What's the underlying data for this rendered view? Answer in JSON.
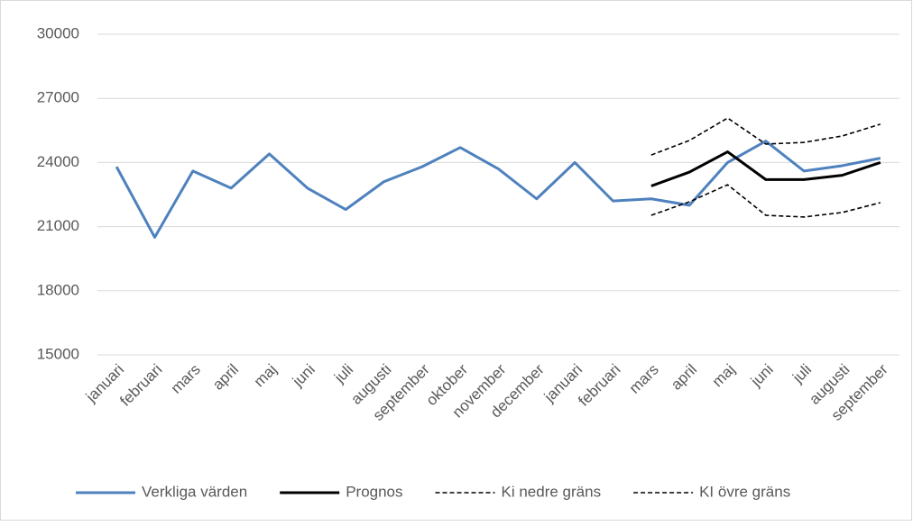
{
  "chart_data": {
    "type": "line",
    "categories": [
      "januari",
      "februari",
      "mars",
      "april",
      "maj",
      "juni",
      "juli",
      "augusti",
      "september",
      "oktober",
      "november",
      "december",
      "januari",
      "februari",
      "mars",
      "april",
      "maj",
      "juni",
      "juli",
      "augusti",
      "september"
    ],
    "series": [
      {
        "name": "Verkliga värden",
        "color": "#4e81bd",
        "dashed": false,
        "values": [
          23800,
          20500,
          23600,
          22800,
          24400,
          22800,
          21800,
          23100,
          23800,
          24700,
          23700,
          22300,
          24000,
          22200,
          22300,
          22000,
          24000,
          25000,
          23600,
          23850,
          24200
        ]
      },
      {
        "name": "Prognos",
        "color": "#000000",
        "dashed": false,
        "values": [
          null,
          null,
          null,
          null,
          null,
          null,
          null,
          null,
          null,
          null,
          null,
          null,
          null,
          null,
          22900,
          23550,
          24500,
          23200,
          23200,
          23400,
          24000
        ]
      },
      {
        "name": "Ki nedre gräns",
        "color": "#000000",
        "dashed": true,
        "values": [
          null,
          null,
          null,
          null,
          null,
          null,
          null,
          null,
          null,
          null,
          null,
          null,
          null,
          null,
          21530,
          22160,
          22960,
          21530,
          21450,
          21660,
          22120
        ]
      },
      {
        "name": "KI övre gräns",
        "color": "#000000",
        "dashed": true,
        "values": [
          null,
          null,
          null,
          null,
          null,
          null,
          null,
          null,
          null,
          null,
          null,
          null,
          null,
          null,
          24350,
          25030,
          26080,
          24860,
          24940,
          25240,
          25790
        ]
      }
    ],
    "ylim": [
      15000,
      30000
    ],
    "yticks": [
      15000,
      18000,
      21000,
      24000,
      27000,
      30000
    ],
    "grid": true,
    "legend": "bottom"
  }
}
